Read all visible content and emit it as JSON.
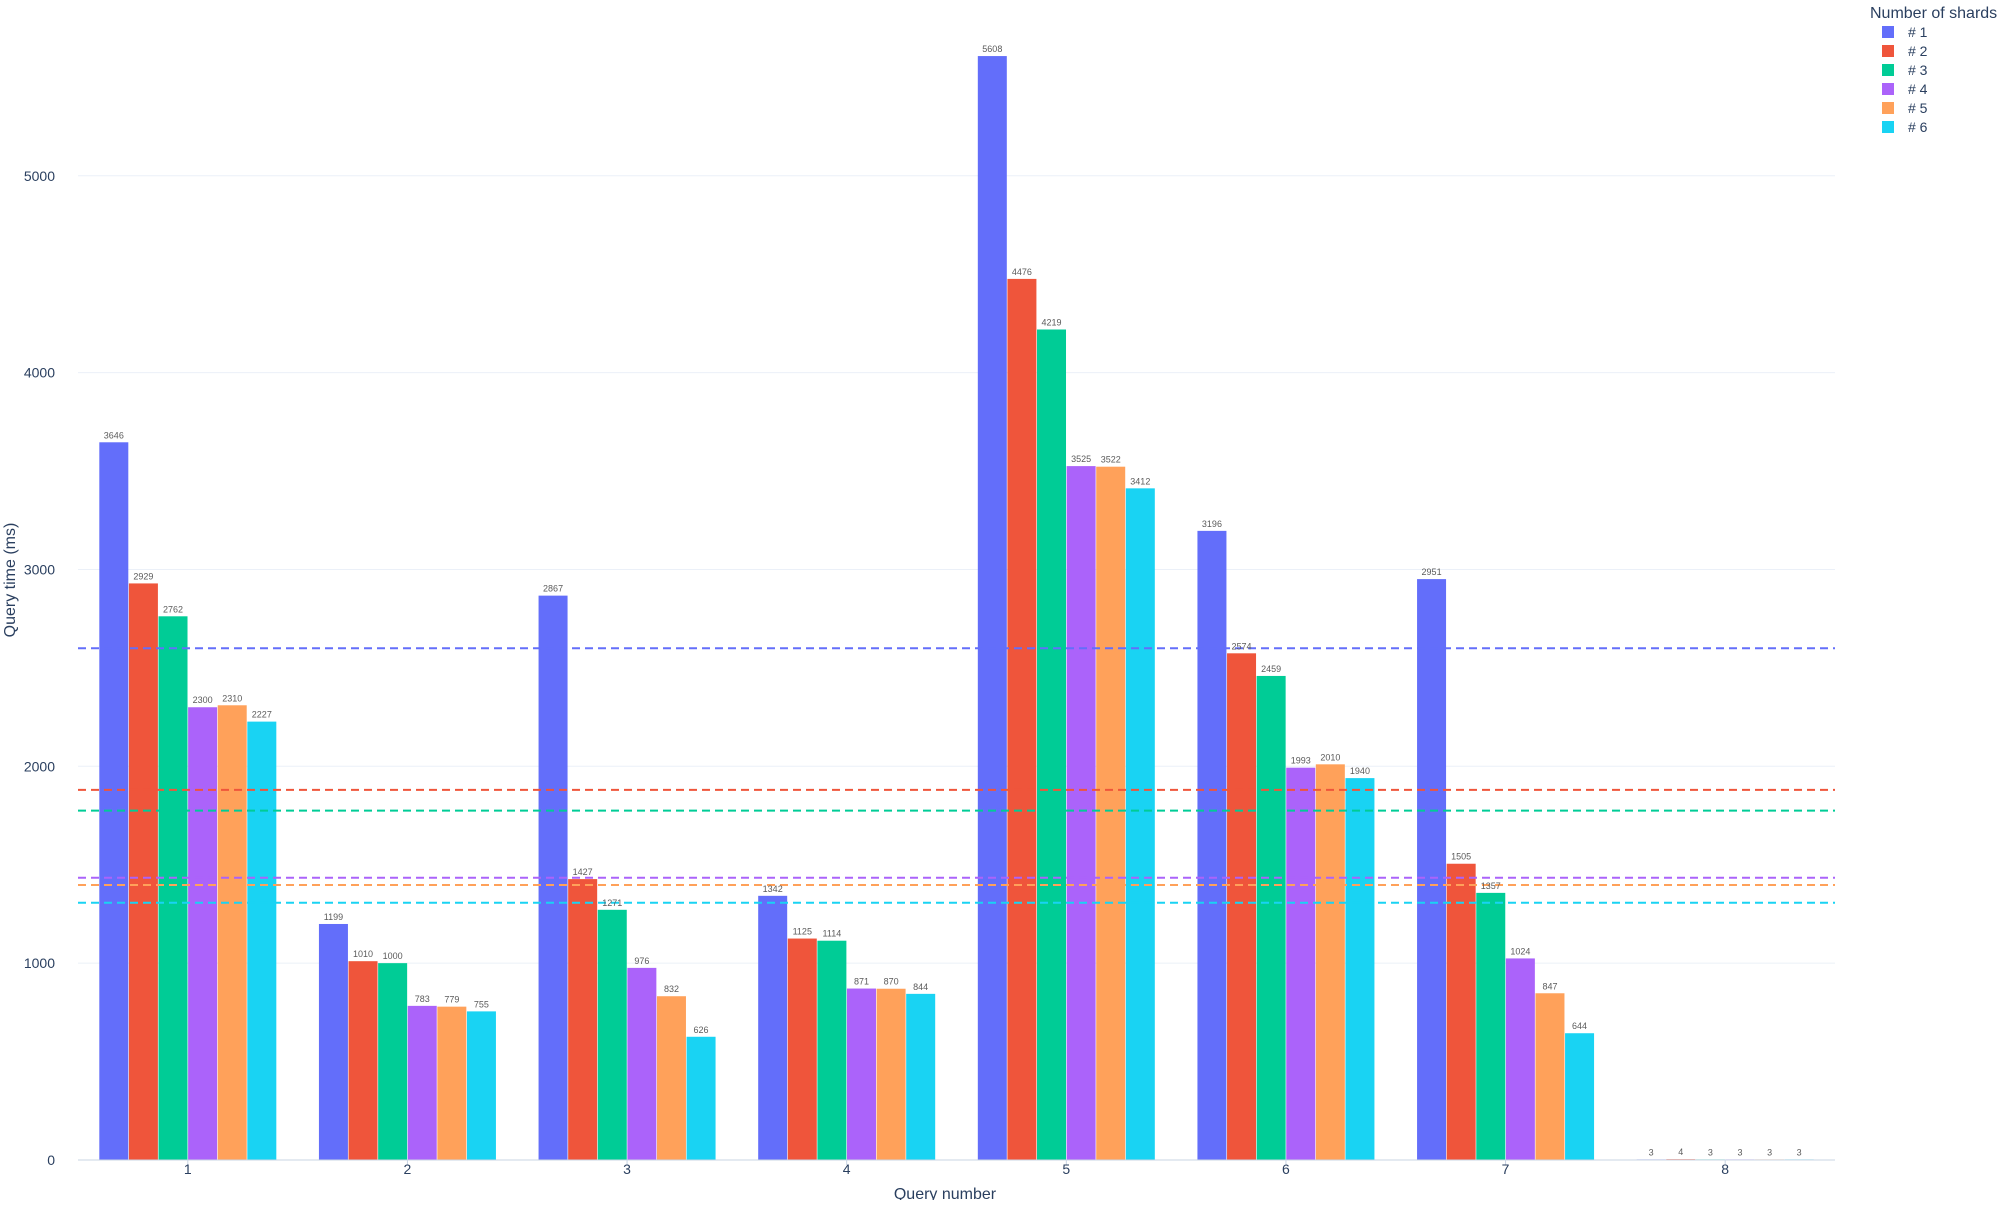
{
  "chart_data": {
    "type": "bar",
    "barmode": "group",
    "xlabel": "Query number",
    "ylabel": "Query time (ms)",
    "categories": [
      "1",
      "2",
      "3",
      "4",
      "5",
      "6",
      "7",
      "8"
    ],
    "ylim": [
      0,
      5700
    ],
    "yticks": [
      0,
      1000,
      2000,
      3000,
      4000,
      5000
    ],
    "grid": true,
    "legend": {
      "title": "Number of shards",
      "placement": "top-right"
    },
    "series": [
      {
        "name": "# 1",
        "color": "#636efa",
        "values": [
          3646,
          1199,
          2867,
          1342,
          5608,
          3196,
          2951,
          3
        ],
        "mean_line": 2600
      },
      {
        "name": "# 2",
        "color": "#ef553b",
        "values": [
          2929,
          1010,
          1427,
          1125,
          4476,
          2574,
          1505,
          4
        ],
        "mean_line": 1880
      },
      {
        "name": "# 3",
        "color": "#00cc96",
        "values": [
          2762,
          1000,
          1271,
          1114,
          4219,
          2459,
          1357,
          3
        ],
        "mean_line": 1775
      },
      {
        "name": "# 4",
        "color": "#ab63fa",
        "values": [
          2300,
          783,
          976,
          871,
          3525,
          1993,
          1024,
          3
        ],
        "mean_line": 1434
      },
      {
        "name": "# 5",
        "color": "#ffa15a",
        "values": [
          2310,
          779,
          832,
          870,
          3522,
          2010,
          847,
          3
        ],
        "mean_line": 1397
      },
      {
        "name": "# 6",
        "color": "#19d3f3",
        "values": [
          2227,
          755,
          626,
          844,
          3412,
          1940,
          644,
          3
        ],
        "mean_line": 1307
      }
    ]
  }
}
